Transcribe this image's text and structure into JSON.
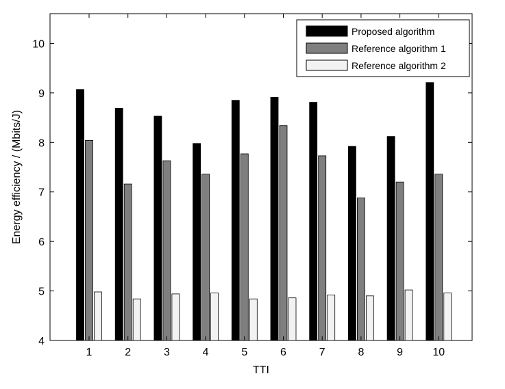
{
  "chart_data": {
    "type": "bar",
    "title": "",
    "xlabel": "TTI",
    "ylabel": "Energy efficiency / (Mbits/J)",
    "ylim": [
      4,
      10.6
    ],
    "yticks": [
      4,
      5,
      6,
      7,
      8,
      9,
      10
    ],
    "grid": false,
    "legend_position": "top-right",
    "categories": [
      "1",
      "2",
      "3",
      "4",
      "5",
      "6",
      "7",
      "8",
      "9",
      "10"
    ],
    "series": [
      {
        "name": "Proposed algorithm",
        "color": "#000000",
        "values": [
          9.07,
          8.69,
          8.53,
          7.98,
          8.85,
          8.91,
          8.81,
          7.92,
          8.12,
          9.21
        ]
      },
      {
        "name": "Reference algorithm 1",
        "color": "#7f7f7f",
        "values": [
          8.04,
          7.16,
          7.63,
          7.36,
          7.77,
          8.34,
          7.73,
          6.88,
          7.2,
          7.36
        ]
      },
      {
        "name": "Reference algorithm 2",
        "color": "#f2f2f2",
        "values": [
          4.98,
          4.84,
          4.94,
          4.96,
          4.84,
          4.86,
          4.92,
          4.9,
          5.02,
          4.96
        ]
      }
    ]
  }
}
